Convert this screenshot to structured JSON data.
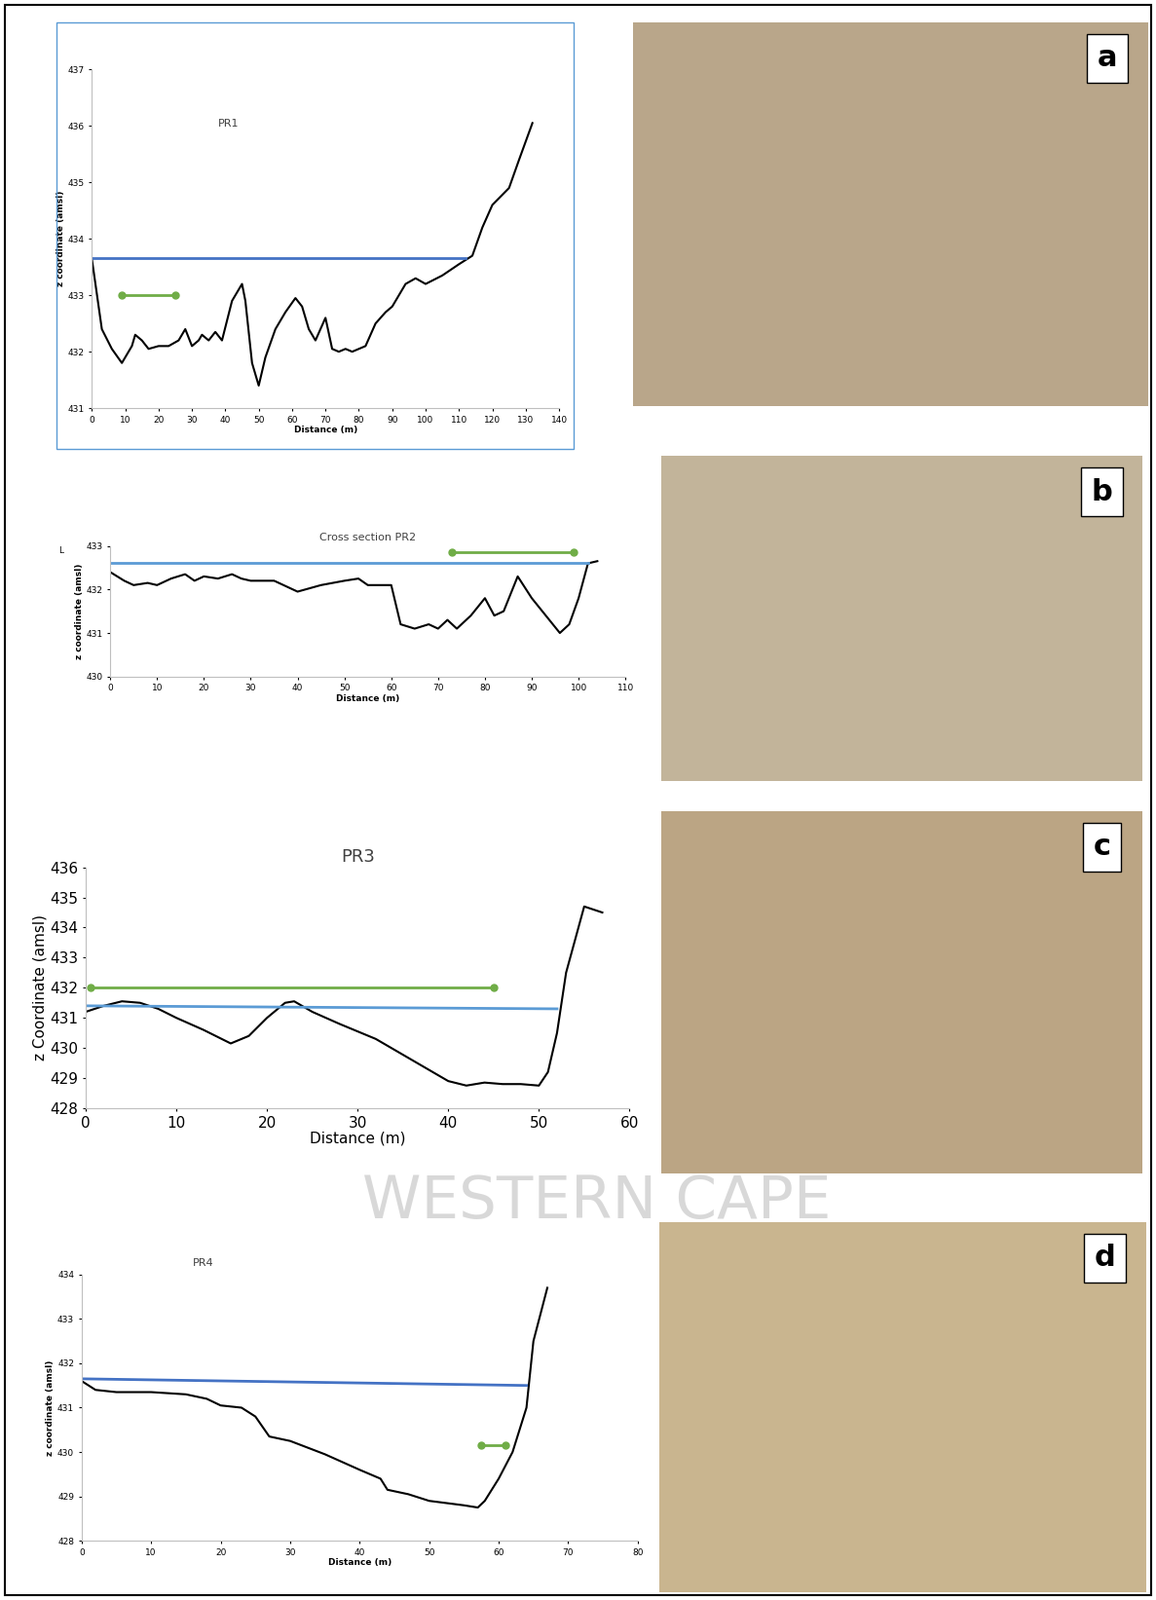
{
  "chart_data": [
    {
      "type": "line",
      "title": "PR1",
      "x_label": "Distance (m)",
      "y_label": "z coordinate (amsl)",
      "xlim": [
        0,
        140
      ],
      "xticks": [
        0,
        10,
        20,
        30,
        40,
        50,
        60,
        70,
        80,
        90,
        100,
        110,
        120,
        130,
        140
      ],
      "ylim": [
        431,
        437
      ],
      "yticks": [
        431,
        432,
        433,
        434,
        435,
        436,
        437
      ],
      "grid": false,
      "series": [
        {
          "color": "#000000",
          "marker": "none",
          "line_style": "solid",
          "x": [
            0,
            3,
            6,
            9,
            12,
            13,
            15,
            17,
            20,
            23,
            26,
            28,
            30,
            32,
            33,
            35,
            37,
            39,
            42,
            45,
            46,
            48,
            50,
            52,
            55,
            58,
            61,
            63,
            65,
            67,
            70,
            72,
            74,
            76,
            78,
            82,
            85,
            88,
            90,
            94,
            97,
            100,
            105,
            110,
            114,
            117,
            120,
            125,
            128,
            132
          ],
          "values": [
            433.65,
            432.4,
            432.05,
            431.8,
            432.1,
            432.3,
            432.2,
            432.05,
            432.1,
            432.1,
            432.2,
            432.4,
            432.1,
            432.2,
            432.3,
            432.2,
            432.35,
            432.2,
            432.9,
            433.2,
            432.9,
            431.8,
            431.4,
            431.9,
            432.4,
            432.7,
            432.95,
            432.8,
            432.4,
            432.2,
            432.6,
            432.05,
            432.0,
            432.05,
            432.0,
            432.1,
            432.5,
            432.7,
            432.8,
            433.2,
            433.3,
            433.2,
            433.35,
            433.55,
            433.7,
            434.2,
            434.6,
            434.9,
            435.4,
            436.05
          ]
        },
        {
          "color": "#4472c4",
          "marker": "none",
          "line_style": "solid",
          "x": [
            0,
            112
          ],
          "values": [
            433.65,
            433.65
          ]
        },
        {
          "color": "#70ad47",
          "marker": "o",
          "line_style": "solid",
          "x": [
            9,
            25
          ],
          "values": [
            433.0,
            433.0
          ]
        }
      ]
    },
    {
      "type": "line",
      "title": "Cross section PR2",
      "x_label": "Distance (m)",
      "y_label": "z coordinate (amsl)",
      "corner_text": "L",
      "xlim": [
        0,
        110
      ],
      "xticks": [
        0,
        10,
        20,
        30,
        40,
        50,
        60,
        70,
        80,
        90,
        100,
        110
      ],
      "ylim": [
        430,
        433
      ],
      "yticks": [
        430,
        431,
        432,
        433
      ],
      "grid": false,
      "series": [
        {
          "color": "#000000",
          "marker": "none",
          "line_style": "solid",
          "x": [
            0,
            3,
            5,
            8,
            10,
            13,
            16,
            18,
            20,
            23,
            26,
            28,
            30,
            35,
            40,
            45,
            50,
            53,
            55,
            60,
            62,
            65,
            68,
            70,
            72,
            74,
            77,
            80,
            82,
            84,
            87,
            90,
            93,
            96,
            98,
            100,
            102,
            104
          ],
          "values": [
            432.4,
            432.2,
            432.1,
            432.15,
            432.1,
            432.25,
            432.35,
            432.2,
            432.3,
            432.25,
            432.35,
            432.25,
            432.2,
            432.2,
            431.95,
            432.1,
            432.2,
            432.25,
            432.1,
            432.1,
            431.2,
            431.1,
            431.2,
            431.1,
            431.3,
            431.1,
            431.4,
            431.8,
            431.4,
            431.5,
            432.3,
            431.8,
            431.4,
            431.0,
            431.2,
            431.8,
            432.6,
            432.65
          ]
        },
        {
          "color": "#5b9bd5",
          "marker": "none",
          "line_style": "solid",
          "x": [
            0,
            102
          ],
          "values": [
            432.6,
            432.6
          ]
        },
        {
          "color": "#70ad47",
          "marker": "o",
          "line_style": "solid",
          "x": [
            73,
            99
          ],
          "values": [
            432.85,
            432.85
          ]
        }
      ]
    },
    {
      "type": "line",
      "title": "PR3",
      "x_label": "Distance (m)",
      "y_label": "z Coordinate (amsl)",
      "xlim": [
        0,
        60
      ],
      "xticks": [
        0,
        10,
        20,
        30,
        40,
        50,
        60
      ],
      "ylim": [
        428,
        436
      ],
      "yticks": [
        428,
        429,
        430,
        431,
        432,
        433,
        434,
        435,
        436
      ],
      "grid": false,
      "series": [
        {
          "color": "#000000",
          "marker": "none",
          "line_style": "solid",
          "x": [
            0,
            2,
            4,
            6,
            8,
            10,
            13,
            16,
            18,
            20,
            22,
            23,
            25,
            28,
            32,
            36,
            40,
            42,
            44,
            46,
            48,
            50,
            51,
            52,
            53,
            55,
            57
          ],
          "values": [
            431.2,
            431.4,
            431.55,
            431.5,
            431.3,
            431.0,
            430.6,
            430.15,
            430.4,
            431.0,
            431.5,
            431.55,
            431.2,
            430.8,
            430.3,
            429.6,
            428.9,
            428.75,
            428.85,
            428.8,
            428.8,
            428.75,
            429.2,
            430.5,
            432.5,
            434.7,
            434.5
          ]
        },
        {
          "color": "#5b9bd5",
          "marker": "none",
          "line_style": "solid",
          "x": [
            0,
            52
          ],
          "values": [
            431.4,
            431.3
          ]
        },
        {
          "color": "#70ad47",
          "marker": "o",
          "line_style": "solid",
          "x": [
            0.5,
            45
          ],
          "values": [
            432.0,
            432.0
          ]
        }
      ]
    },
    {
      "type": "line",
      "title": "PR4",
      "x_label": "Distance (m)",
      "y_label": "z coordinate (amsl)",
      "xlim": [
        0,
        80
      ],
      "xticks": [
        0,
        10,
        20,
        30,
        40,
        50,
        60,
        70,
        80
      ],
      "ylim": [
        428,
        434
      ],
      "yticks": [
        428,
        429,
        430,
        431,
        432,
        433,
        434
      ],
      "grid": false,
      "series": [
        {
          "color": "#000000",
          "marker": "none",
          "line_style": "solid",
          "x": [
            0,
            2,
            5,
            10,
            15,
            18,
            20,
            23,
            25,
            27,
            30,
            35,
            40,
            43,
            44,
            47,
            50,
            55,
            57,
            58,
            60,
            62,
            64,
            65,
            67
          ],
          "values": [
            431.6,
            431.4,
            431.35,
            431.35,
            431.3,
            431.2,
            431.05,
            431.0,
            430.8,
            430.35,
            430.25,
            429.95,
            429.6,
            429.4,
            429.15,
            429.05,
            428.9,
            428.8,
            428.75,
            428.9,
            429.4,
            430.0,
            431.0,
            432.5,
            433.7
          ]
        },
        {
          "color": "#4472c4",
          "marker": "none",
          "line_style": "solid",
          "x": [
            0,
            64
          ],
          "values": [
            431.65,
            431.5
          ]
        },
        {
          "color": "#70ad47",
          "marker": "o",
          "line_style": "solid",
          "x": [
            57.5,
            61
          ],
          "values": [
            430.15,
            430.15
          ]
        }
      ]
    }
  ],
  "photo_labels": [
    "a",
    "b",
    "c",
    "d"
  ],
  "watermark": "WESTERN CAPE"
}
